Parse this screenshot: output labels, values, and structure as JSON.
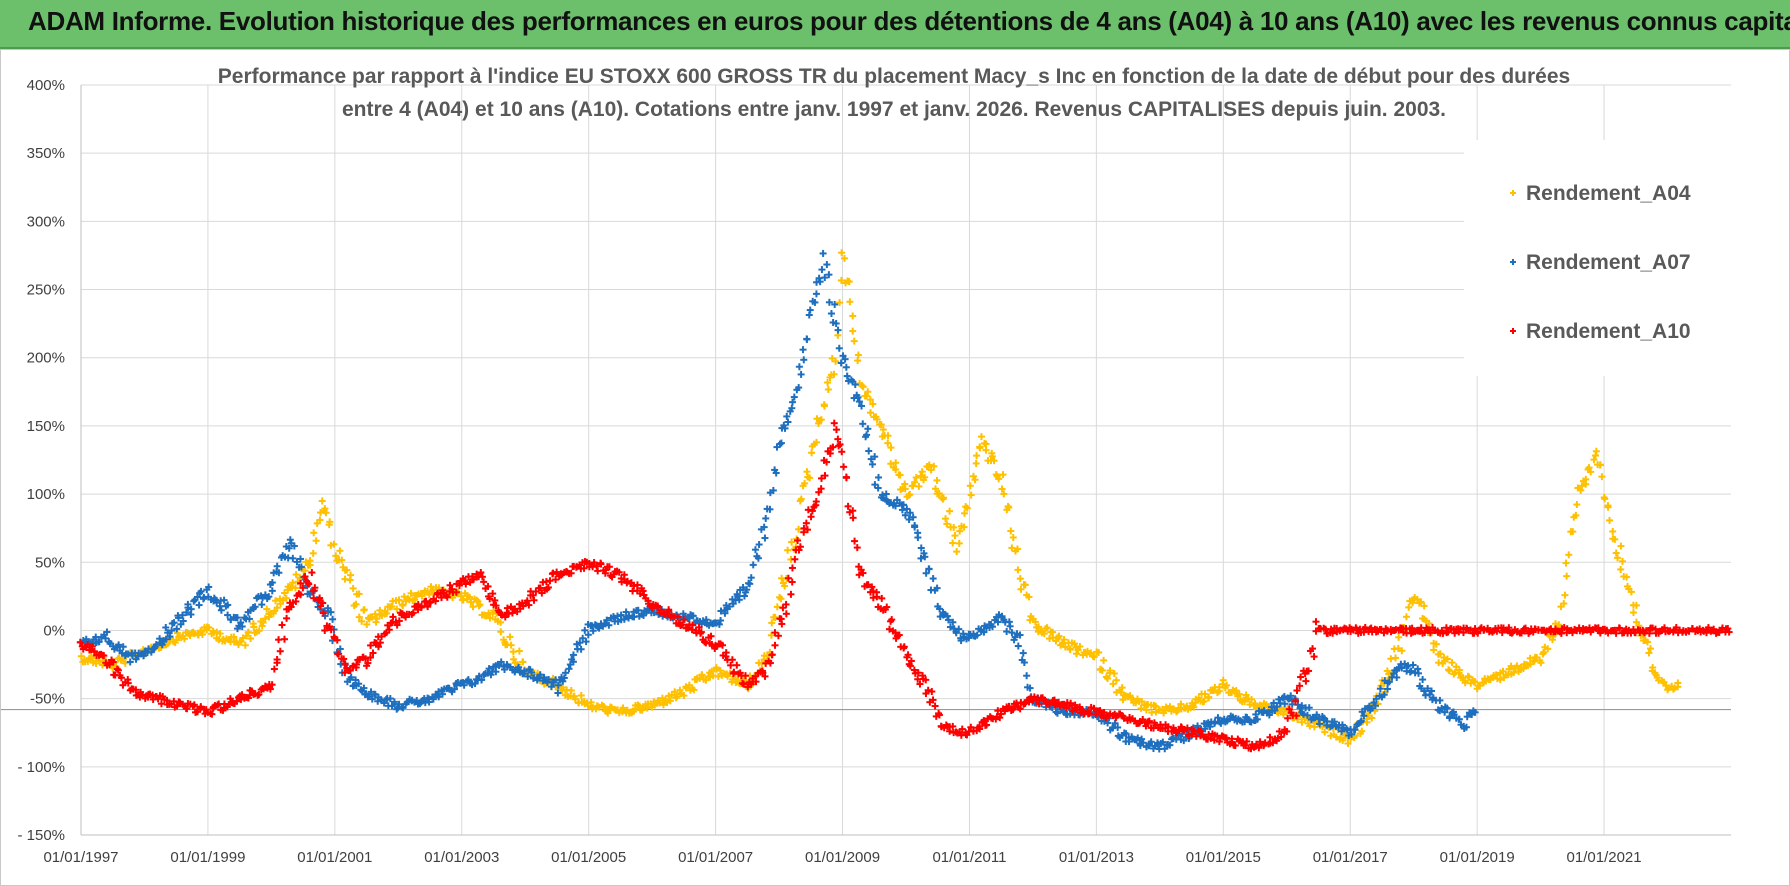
{
  "banner": {
    "text": "ADAM Informe. Evolution historique des performances en euros pour des détentions de 4 ans (A04) à 10 ans (A10) avec les revenus connus capitalisés"
  },
  "chart_data": {
    "type": "scatter",
    "title_line1": "Performance par rapport à l'indice EU STOXX 600 GROSS TR  du placement Macy_s Inc en fonction de la date de début pour des durées",
    "title_line2": "entre 4 (A04) et 10 ans (A10).  Cotations entre janv. 1997 et janv. 2026. Revenus CAPITALISES depuis juin. 2003.",
    "xlabel": "",
    "ylabel": "",
    "xlim": [
      1997.0,
      2023.0
    ],
    "ylim": [
      -150,
      400
    ],
    "x_ticks": [
      1997,
      1999,
      2001,
      2003,
      2005,
      2007,
      2009,
      2011,
      2013,
      2015,
      2017,
      2019,
      2021
    ],
    "x_tick_labels": [
      "01/01/1997",
      "01/01/1999",
      "01/01/2001",
      "01/01/2003",
      "01/01/2005",
      "01/01/2007",
      "01/01/2009",
      "01/01/2011",
      "01/01/2013",
      "01/01/2015",
      "01/01/2017",
      "01/01/2019",
      "01/01/2021"
    ],
    "y_ticks": [
      -150,
      -100,
      -50,
      0,
      50,
      100,
      150,
      200,
      250,
      300,
      350,
      400
    ],
    "y_tick_labels": [
      "- 150%",
      "- 100%",
      "-50%",
      "0%",
      "50%",
      "100%",
      "150%",
      "200%",
      "250%",
      "300%",
      "350%",
      "400%"
    ],
    "grid": true,
    "reference_line": -58,
    "legend_position": "top-right",
    "series": [
      {
        "name": "Rendement_A04",
        "color": "#ffc000",
        "x": [
          1997.0,
          1997.5,
          1998.0,
          1998.5,
          1999.0,
          1999.5,
          2000.0,
          2000.3,
          2000.6,
          2000.8,
          2001.0,
          2001.5,
          2002.0,
          2002.5,
          2003.0,
          2003.5,
          2004.0,
          2004.5,
          2005.0,
          2005.5,
          2006.0,
          2006.5,
          2007.0,
          2007.5,
          2007.8,
          2008.0,
          2008.3,
          2008.6,
          2008.9,
          2009.0,
          2009.3,
          2009.6,
          2010.0,
          2010.4,
          2010.8,
          2011.0,
          2011.2,
          2011.5,
          2011.8,
          2012.0,
          2012.5,
          2013.0,
          2013.5,
          2014.0,
          2014.5,
          2015.0,
          2015.5,
          2016.0,
          2016.5,
          2017.0,
          2017.4,
          2017.8,
          2018.0,
          2018.4,
          2018.8,
          2019.0,
          2019.5,
          2020.0,
          2020.3,
          2020.6,
          2020.9,
          2021.1,
          2021.4,
          2021.8,
          2022.0,
          2022.2
        ],
        "y": [
          -20,
          -25,
          -15,
          -5,
          0,
          -10,
          15,
          30,
          50,
          95,
          60,
          5,
          20,
          30,
          25,
          10,
          -30,
          -40,
          -55,
          -60,
          -55,
          -45,
          -30,
          -40,
          -20,
          20,
          80,
          150,
          200,
          280,
          180,
          150,
          100,
          120,
          60,
          100,
          140,
          110,
          40,
          5,
          -10,
          -20,
          -50,
          -60,
          -55,
          -40,
          -55,
          -60,
          -70,
          -80,
          -55,
          -10,
          30,
          -20,
          -35,
          -40,
          -30,
          -20,
          10,
          100,
          130,
          80,
          30,
          -30,
          -45,
          -40
        ]
      },
      {
        "name": "Rendement_A07",
        "color": "#1f6fbf",
        "x": [
          1997.0,
          1997.4,
          1997.8,
          1998.2,
          1998.6,
          1999.0,
          1999.5,
          2000.0,
          2000.3,
          2000.6,
          2000.9,
          2001.2,
          2001.5,
          2002.0,
          2002.5,
          2003.0,
          2003.3,
          2003.6,
          2004.0,
          2004.5,
          2005.0,
          2005.5,
          2006.0,
          2006.5,
          2007.0,
          2007.5,
          2007.8,
          2008.0,
          2008.3,
          2008.5,
          2008.7,
          2009.0,
          2009.3,
          2009.6,
          2010.0,
          2010.3,
          2010.6,
          2010.9,
          2011.2,
          2011.5,
          2011.8,
          2012.0,
          2012.5,
          2013.0,
          2013.5,
          2014.0,
          2014.5,
          2015.0,
          2015.5,
          2016.0,
          2016.5,
          2017.0,
          2017.4,
          2017.8,
          2018.0,
          2018.4,
          2018.8,
          2019.0
        ],
        "y": [
          -10,
          -5,
          -20,
          -10,
          10,
          30,
          5,
          30,
          65,
          30,
          10,
          -35,
          -45,
          -55,
          -50,
          -40,
          -35,
          -25,
          -30,
          -40,
          0,
          10,
          15,
          10,
          5,
          30,
          80,
          140,
          180,
          230,
          270,
          200,
          160,
          100,
          90,
          50,
          10,
          -5,
          0,
          10,
          -10,
          -50,
          -60,
          -60,
          -80,
          -85,
          -75,
          -65,
          -65,
          -50,
          -65,
          -75,
          -50,
          -25,
          -30,
          -55,
          -70,
          -55
        ]
      },
      {
        "name": "Rendement_A10",
        "color": "#ff0000",
        "x": [
          1997.0,
          1997.4,
          1997.8,
          1998.2,
          1998.6,
          1999.0,
          1999.5,
          2000.0,
          2000.3,
          2000.6,
          2000.9,
          2001.2,
          2001.5,
          2002.0,
          2002.5,
          2003.0,
          2003.3,
          2003.6,
          2004.0,
          2004.5,
          2005.0,
          2005.5,
          2006.0,
          2006.5,
          2007.0,
          2007.5,
          2007.8,
          2008.0,
          2008.3,
          2008.6,
          2008.9,
          2009.0,
          2009.3,
          2009.6,
          2010.0,
          2010.3,
          2010.6,
          2010.9,
          2011.2,
          2011.5,
          2011.8,
          2012.0,
          2012.5,
          2013.0,
          2013.5,
          2014.0,
          2014.5,
          2015.0,
          2015.5,
          2016.0,
          2016.5,
          2017.0,
          2018.0,
          2019.0,
          2020.0,
          2021.0,
          2022.0,
          2023.0
        ],
        "y": [
          -10,
          -20,
          -45,
          -50,
          -55,
          -60,
          -50,
          -40,
          20,
          40,
          0,
          -30,
          -20,
          10,
          20,
          35,
          40,
          10,
          20,
          40,
          50,
          40,
          20,
          5,
          -10,
          -40,
          -30,
          0,
          60,
          100,
          150,
          130,
          40,
          20,
          -20,
          -40,
          -70,
          -75,
          -70,
          -60,
          -55,
          -50,
          -55,
          -60,
          -65,
          -70,
          -75,
          -80,
          -85,
          -75,
          0,
          0,
          0,
          0,
          0,
          0,
          0,
          0
        ]
      }
    ]
  }
}
